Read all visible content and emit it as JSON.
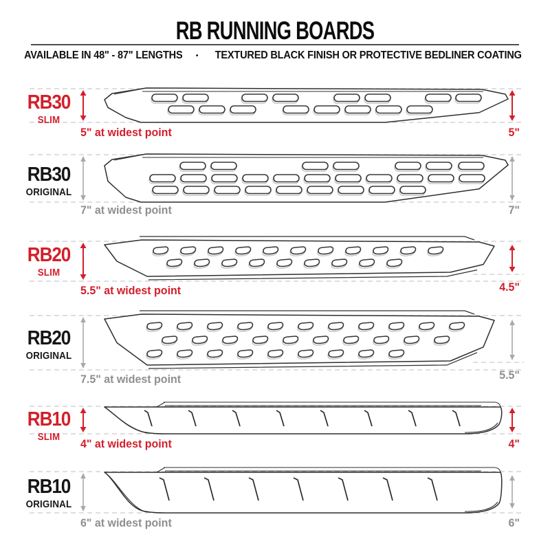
{
  "header": {
    "title": "RB RUNNING BOARDS",
    "subtitle_left": "AVAILABLE IN 48\" - 87\" LENGTHS",
    "subtitle_separator": "•",
    "subtitle_right": "TEXTURED BLACK FINISH OR PROTECTIVE BEDLINER COATING"
  },
  "colors": {
    "accent_red": "#d31f2b",
    "gray_arrow": "#a8a8a8",
    "gray_text": "#8f8f8f",
    "dashed_line": "#cbcbcb",
    "board_outline": "#2e2e2e",
    "slot_shadow": "#c4c4c4",
    "title_divider": "#4d4d4d"
  },
  "rows": [
    {
      "model": "RB30",
      "variant": "SLIM",
      "widest_label": "5\" at widest point",
      "height_label": "5\""
    },
    {
      "model": "RB30",
      "variant": "ORIGINAL",
      "widest_label": "7\" at widest point",
      "height_label": "7\""
    },
    {
      "model": "RB20",
      "variant": "SLIM",
      "widest_label": "5.5\" at widest point",
      "height_label": "4.5\""
    },
    {
      "model": "RB20",
      "variant": "ORIGINAL",
      "widest_label": "7.5\" at widest point",
      "height_label": "5.5\""
    },
    {
      "model": "RB10",
      "variant": "SLIM",
      "widest_label": "4\" at widest point",
      "height_label": "4\""
    },
    {
      "model": "RB10",
      "variant": "ORIGINAL",
      "widest_label": "6\" at widest point",
      "height_label": "6\""
    }
  ]
}
